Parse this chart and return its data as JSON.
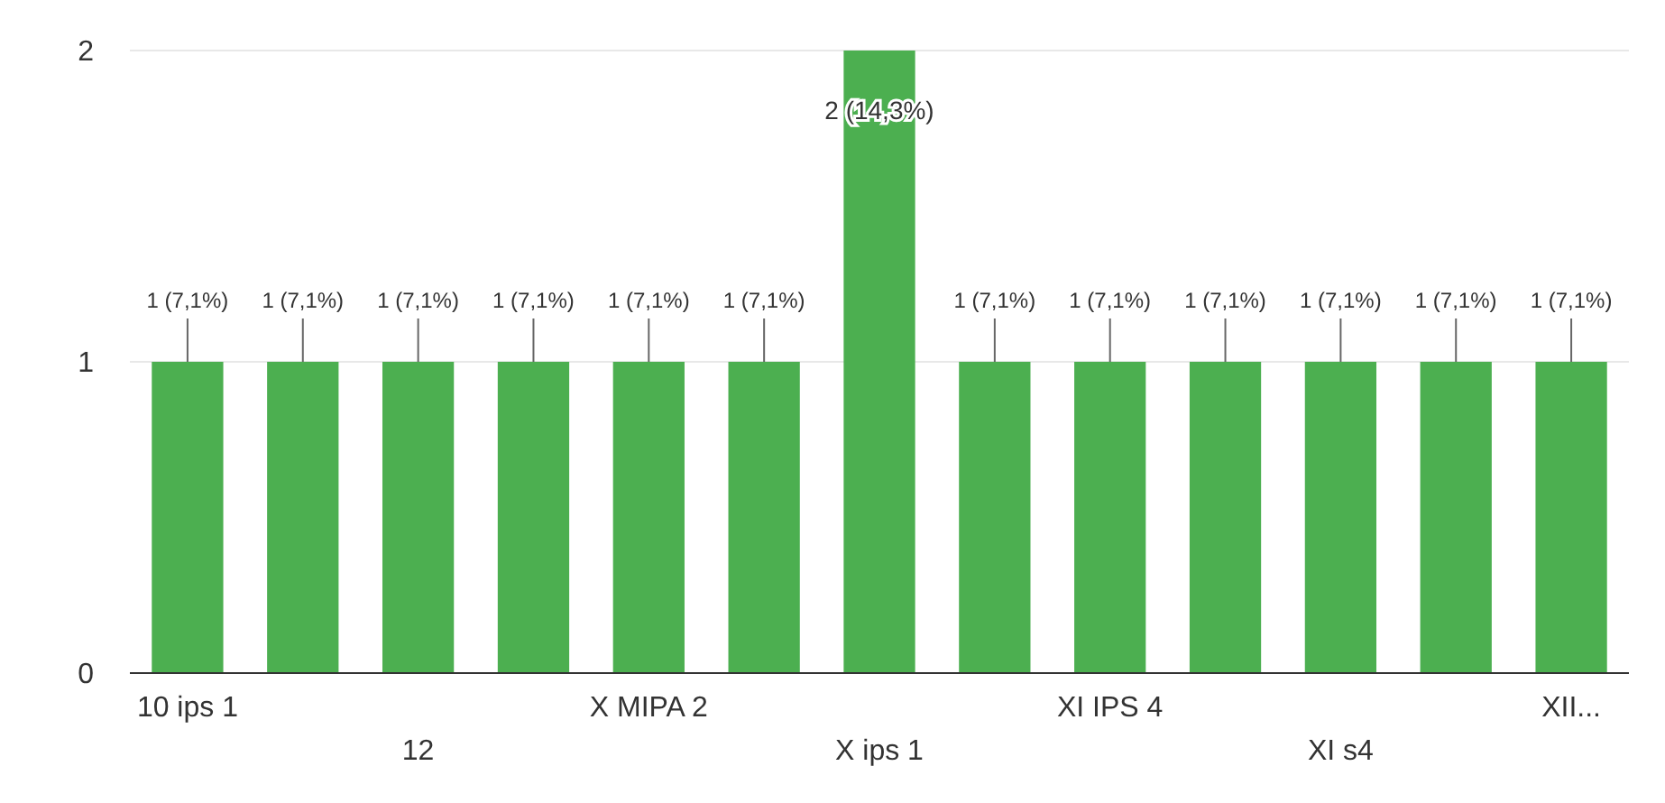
{
  "chart_data": {
    "type": "bar",
    "categories": [
      "10 ips 1",
      null,
      "12",
      null,
      "X MIPA 2",
      null,
      "X ips 1",
      null,
      "XI IPS 4",
      null,
      "XI s4",
      null,
      "XII..."
    ],
    "values": [
      1,
      1,
      1,
      1,
      1,
      1,
      2,
      1,
      1,
      1,
      1,
      1,
      1
    ],
    "value_labels": [
      "1 (7,1%)",
      "1 (7,1%)",
      "1 (7,1%)",
      "1 (7,1%)",
      "1 (7,1%)",
      "1 (7,1%)",
      "2 (14,3%)",
      "1 (7,1%)",
      "1 (7,1%)",
      "1 (7,1%)",
      "1 (7,1%)",
      "1 (7,1%)",
      "1 (7,1%)"
    ],
    "color": "#4caf50",
    "ylim": [
      0,
      2
    ],
    "yticks": [
      0,
      1,
      2
    ],
    "grid": "y"
  }
}
